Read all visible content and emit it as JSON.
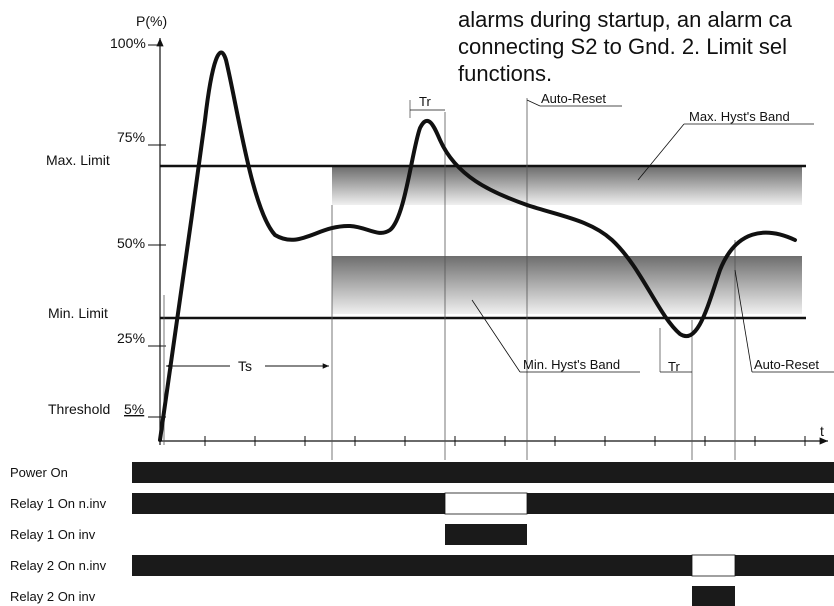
{
  "intro_text": {
    "lines": [
      "alarms during startup, an alarm ca",
      "connecting S2 to Gnd. 2. Limit sel",
      "functions."
    ]
  },
  "axes": {
    "y_label": "P(%)",
    "x_label": "t",
    "y_ticks": [
      "100%",
      "75%",
      "50%",
      "25%"
    ],
    "threshold_label": "Threshold",
    "threshold_value": "5%"
  },
  "limits": {
    "max_label": "Max.  Limit",
    "min_label": "Min.  Limit"
  },
  "annotations": {
    "tr_top": "Tr",
    "tr_bottom": "Tr",
    "auto_reset_top": "Auto-Reset",
    "auto_reset_right": "Auto-Reset",
    "max_hyst_band": "Max. Hyst's Band",
    "min_hyst_band": "Min. Hyst's Band",
    "ts": "Ts"
  },
  "timing_rows": [
    {
      "label": "Power  On"
    },
    {
      "label": "Relay 1 On n.inv"
    },
    {
      "label": "Relay 1 On inv"
    },
    {
      "label": "Relay 2 On n.inv"
    },
    {
      "label": "Relay 2 On inv"
    }
  ],
  "colors": {
    "ink": "#111111",
    "band_dark": "#6e6e6e",
    "band_light": "#f2f2f2",
    "bar": "#1a1a1a"
  }
}
